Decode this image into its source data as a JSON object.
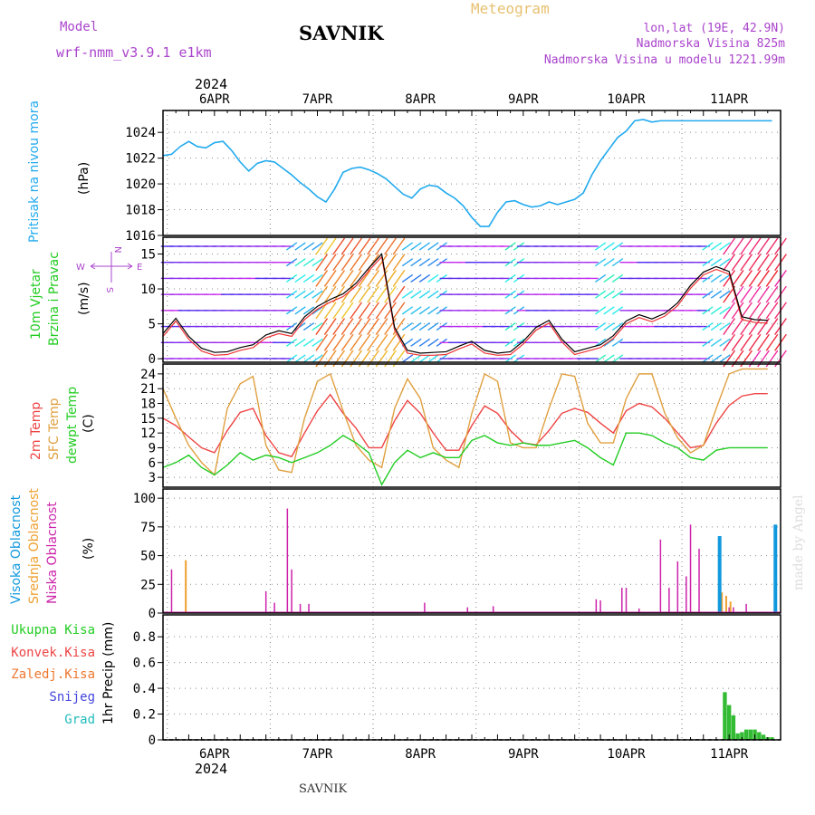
{
  "header": {
    "model_label": "Model",
    "model_name": "wrf-nmm_v3.9.1 e1km",
    "station": "SAVNIK",
    "product": "Meteogram",
    "location": "lon,lat (19E, 42.9N)",
    "elevation": "Nadmorska Visina 825m",
    "model_elevation": "Nadmorska Visina u modelu 1221.99m",
    "year_top": "2024",
    "year_bottom": "2024",
    "footer_station": "SAVNIK",
    "watermark": "made by Angel"
  },
  "colors": {
    "pressure": "#22aaee",
    "temp2m": "#ee4444",
    "sfc": "#e0a040",
    "dewpt": "#22cc22",
    "high_cloud": "#1199dd",
    "mid_cloud": "#eea030",
    "low_cloud": "#cc22aa",
    "purple_text": "#aa44cc",
    "precip": "#33bb33"
  },
  "chart_data": [
    {
      "type": "line",
      "panel": "pressure",
      "ylabel": "Pritisak na nivou mora",
      "unit": "(hPa)",
      "xlabels": [
        "6APR",
        "7APR",
        "8APR",
        "9APR",
        "10APR",
        "11APR"
      ],
      "yticks": [
        1016,
        1018,
        1020,
        1022,
        1024
      ],
      "ylim": [
        1016,
        1025.7
      ],
      "x": [
        0,
        2,
        4,
        6,
        8,
        10,
        12,
        14,
        16,
        18,
        20,
        22,
        24,
        26,
        28,
        30,
        32,
        34,
        36,
        38,
        40,
        42,
        44,
        46,
        48,
        50,
        52,
        54,
        56,
        58,
        60,
        62,
        64,
        66,
        68,
        70,
        72,
        74,
        76,
        78,
        80,
        82,
        84,
        86,
        88,
        90,
        92,
        94,
        96,
        98,
        100,
        102,
        104,
        106,
        108,
        110,
        112,
        114,
        116,
        118,
        120,
        122,
        124,
        126,
        128,
        130,
        132,
        134,
        136,
        138,
        140,
        142
      ],
      "values": [
        1022.2,
        1022.3,
        1022.9,
        1023.3,
        1022.9,
        1022.8,
        1023.2,
        1023.3,
        1022.6,
        1021.7,
        1021.0,
        1021.6,
        1021.8,
        1021.7,
        1021.2,
        1020.7,
        1020.1,
        1019.6,
        1019.0,
        1018.6,
        1019.6,
        1020.9,
        1021.2,
        1021.3,
        1021.1,
        1020.8,
        1020.4,
        1019.8,
        1019.2,
        1018.9,
        1019.6,
        1019.9,
        1019.8,
        1019.3,
        1018.9,
        1018.3,
        1017.4,
        1016.7,
        1016.7,
        1017.8,
        1018.6,
        1018.7,
        1018.4,
        1018.2,
        1018.3,
        1018.6,
        1018.4,
        1018.6,
        1018.8,
        1019.3,
        1020.7,
        1021.8,
        1022.7,
        1023.6,
        1024.1,
        1024.9,
        1025.0,
        1024.8,
        1024.9,
        1024.9,
        1024.9,
        1024.9,
        1024.9,
        1024.9,
        1024.9,
        1024.9,
        1024.9,
        1024.9,
        1024.9,
        1024.9,
        1024.9,
        1024.9
      ]
    },
    {
      "type": "line",
      "panel": "wind",
      "ylabel": "10m Vjetar",
      "ylabel2": "Brzina i Pravac",
      "unit": "(m/s)",
      "compass": {
        "n": "N",
        "w": "W",
        "e": "E",
        "s": "S"
      },
      "yticks": [
        0,
        5,
        10,
        15
      ],
      "ylim": [
        -0.5,
        17.4
      ],
      "x": [
        0,
        3,
        6,
        9,
        12,
        15,
        18,
        21,
        24,
        27,
        30,
        33,
        36,
        39,
        42,
        45,
        48,
        51,
        54,
        57,
        60,
        63,
        66,
        69,
        72,
        75,
        78,
        81,
        84,
        87,
        90,
        93,
        96,
        99,
        102,
        105,
        108,
        111,
        114,
        117,
        120,
        123,
        126,
        129,
        132,
        135,
        138,
        141
      ],
      "values": [
        3.6,
        5.8,
        3.2,
        1.5,
        0.9,
        1.0,
        1.6,
        2.0,
        3.4,
        4.0,
        3.6,
        6.0,
        7.5,
        8.5,
        9.3,
        10.8,
        13.0,
        15.0,
        4.5,
        1.2,
        0.8,
        0.9,
        1.0,
        1.8,
        2.5,
        1.2,
        0.8,
        1.0,
        2.5,
        4.5,
        5.5,
        2.8,
        1.0,
        1.5,
        2.0,
        3.3,
        5.4,
        6.3,
        5.7,
        6.5,
        8.0,
        10.5,
        12.4,
        13.2,
        12.5,
        6.0,
        5.6,
        5.5
      ]
    },
    {
      "type": "line",
      "panel": "temperature",
      "ylabels": [
        "2m Temp",
        "SFC Temp",
        "dewpt Temp"
      ],
      "unit": "(C)",
      "yticks": [
        3,
        6,
        9,
        12,
        15,
        18,
        21,
        24
      ],
      "ylim": [
        1,
        26
      ],
      "x": [
        0,
        3,
        6,
        9,
        12,
        15,
        18,
        21,
        24,
        27,
        30,
        33,
        36,
        39,
        42,
        45,
        48,
        51,
        54,
        57,
        60,
        63,
        66,
        69,
        72,
        75,
        78,
        81,
        84,
        87,
        90,
        93,
        96,
        99,
        102,
        105,
        108,
        111,
        114,
        117,
        120,
        123,
        126,
        129,
        132,
        135,
        138,
        141
      ],
      "series": [
        {
          "name": "2m Temp",
          "values": [
            15.0,
            13.5,
            11.2,
            9.0,
            8.0,
            12.5,
            16.2,
            17.0,
            11.5,
            8.0,
            7.2,
            12.0,
            16.5,
            19.8,
            16.0,
            13.0,
            9.0,
            9.0,
            14.5,
            18.6,
            16.0,
            12.0,
            8.5,
            8.5,
            13.5,
            17.5,
            16.0,
            12.5,
            10.0,
            9.6,
            12.5,
            16.0,
            17.0,
            16.2,
            14.0,
            12.0,
            16.5,
            18.0,
            17.3,
            15.0,
            12.0,
            9.0,
            9.5,
            14.0,
            17.6,
            19.5,
            20.0,
            20.0
          ]
        },
        {
          "name": "SFC Temp",
          "values": [
            21.0,
            15.0,
            9.5,
            6.0,
            3.5,
            17.0,
            22.0,
            23.5,
            9.5,
            4.5,
            4.0,
            15.0,
            22.5,
            24.0,
            16.5,
            9.5,
            6.5,
            5.0,
            17.0,
            23.0,
            19.0,
            9.0,
            6.5,
            5.0,
            16.0,
            24.0,
            22.5,
            10.0,
            9.0,
            9.0,
            17.0,
            24.0,
            23.5,
            14.0,
            10.0,
            10.0,
            19.0,
            24.0,
            24.0,
            16.0,
            11.0,
            8.0,
            9.5,
            17.0,
            24.0,
            25.0,
            25.0,
            25.0
          ]
        },
        {
          "name": "dewpt Temp",
          "values": [
            5.0,
            6.0,
            7.5,
            5.0,
            3.5,
            5.5,
            8.0,
            6.5,
            7.5,
            7.0,
            6.0,
            7.0,
            8.0,
            9.5,
            11.5,
            10.0,
            8.0,
            1.5,
            6.0,
            8.5,
            7.0,
            8.0,
            7.0,
            7.0,
            10.5,
            11.5,
            10.0,
            9.5,
            10.0,
            9.5,
            9.5,
            10.0,
            10.5,
            9.0,
            7.0,
            5.5,
            12.0,
            12.0,
            11.5,
            10.0,
            9.0,
            7.0,
            6.5,
            8.5,
            9.0,
            9.0,
            9.0,
            9.0
          ]
        }
      ]
    },
    {
      "type": "bar",
      "panel": "clouds",
      "ylabels": [
        "Visoka Oblacnost",
        "Srednja Oblacnost",
        "Niska Oblacnost"
      ],
      "unit": "(%)",
      "yticks": [
        0,
        25,
        50,
        75,
        100
      ],
      "ylim": [
        0,
        108
      ],
      "series": [
        {
          "name": "Niska Oblacnost",
          "x": [
            2,
            24,
            26,
            29,
            30,
            32,
            34,
            61,
            71,
            77,
            101,
            102,
            107,
            108,
            111,
            116,
            118,
            120,
            122,
            123,
            125,
            130,
            132,
            133,
            136,
            143
          ],
          "values": [
            38,
            19,
            9,
            91,
            38,
            8,
            8,
            9,
            5,
            6,
            12,
            11,
            22,
            22,
            4,
            64,
            22,
            45,
            32,
            77,
            56,
            14,
            5,
            5,
            8,
            33
          ]
        },
        {
          "name": "Srednja Oblacnost",
          "x": [
            5,
            130,
            131,
            132
          ],
          "values": [
            46,
            18,
            15,
            10
          ]
        },
        {
          "name": "Visoka Oblacnost",
          "x": [
            130,
            143
          ],
          "values": [
            67,
            77
          ]
        }
      ]
    },
    {
      "type": "bar",
      "panel": "precipitation",
      "ylabels": [
        "Ukupna Kisa",
        "Konvek.Kisa",
        "Zaledj.Kisa",
        "Snijeg",
        "Grad"
      ],
      "unit": "1hr Precip (mm)",
      "yticks": [
        0,
        0.2,
        0.4,
        0.6,
        0.8
      ],
      "ylim": [
        0,
        0.97
      ],
      "x": [
        131,
        132,
        133,
        134,
        135,
        136,
        137,
        138,
        139,
        140,
        141,
        142
      ],
      "values": [
        0.37,
        0.27,
        0.19,
        0.05,
        0.06,
        0.08,
        0.08,
        0.08,
        0.06,
        0.04,
        0.02,
        0.02
      ]
    }
  ]
}
